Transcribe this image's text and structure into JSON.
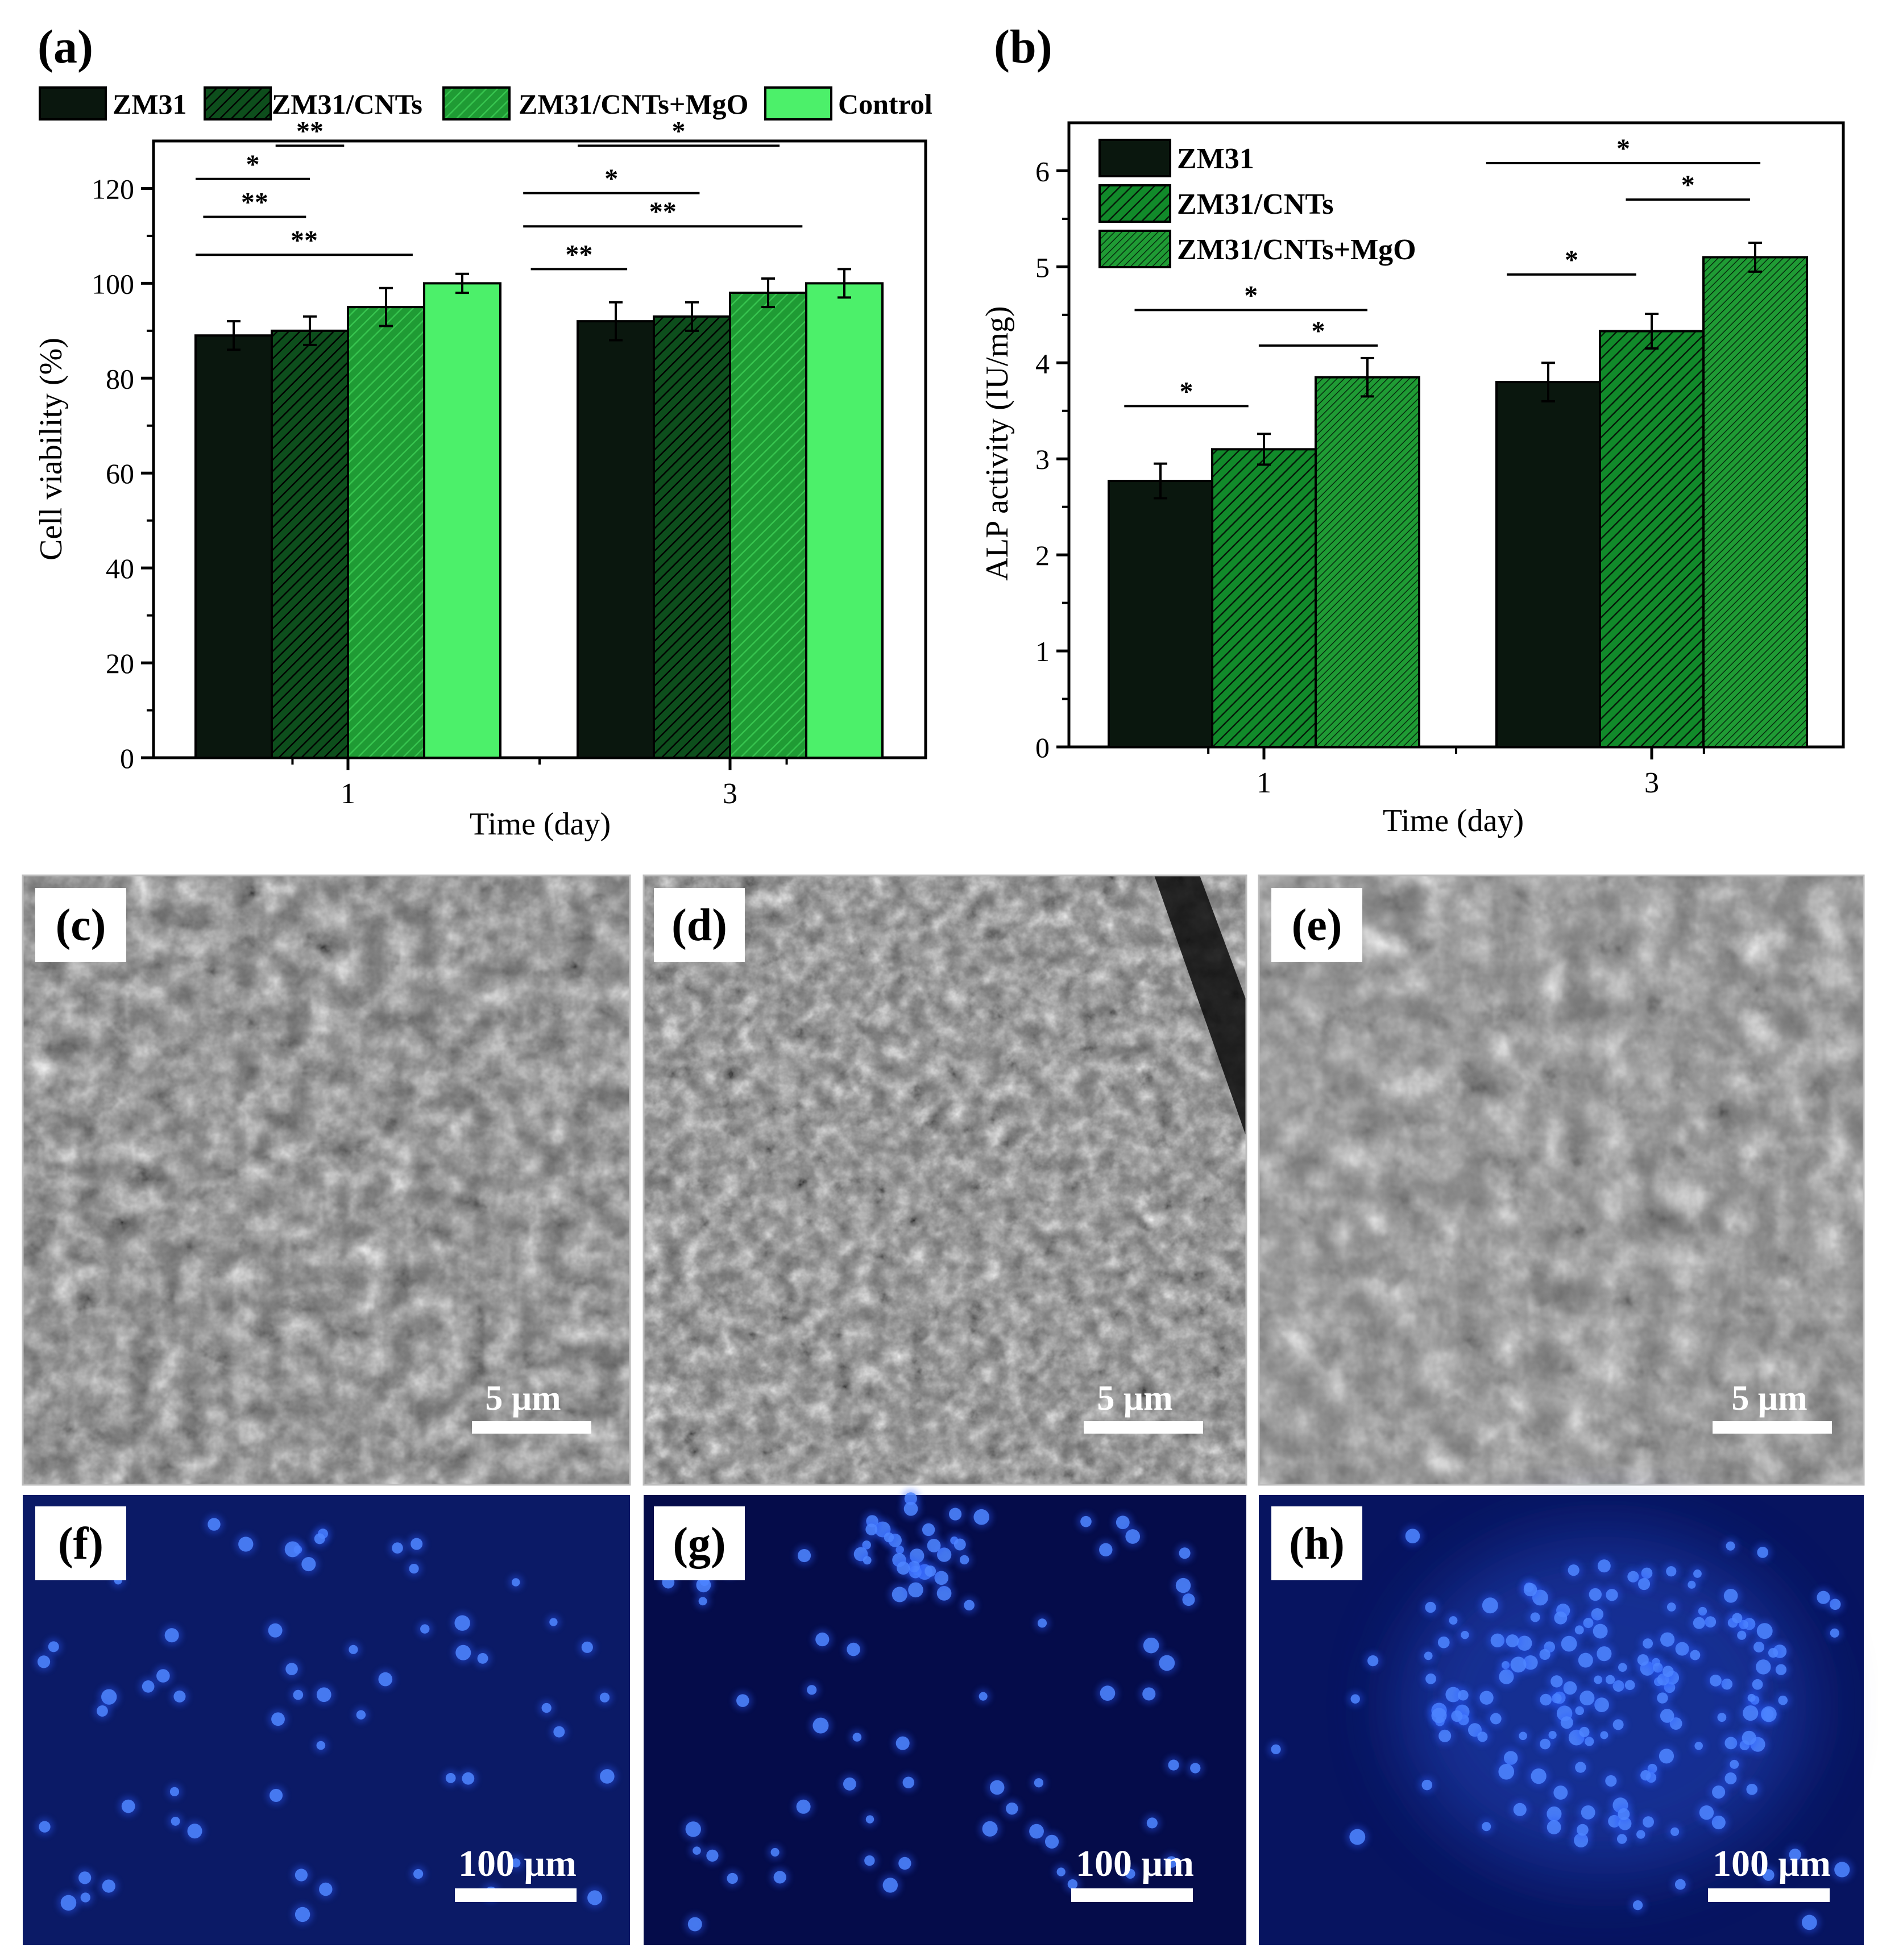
{
  "charts": {
    "colors": {
      "zm31": "#0a170e",
      "zm31_cnts": "#0d4e1c",
      "zm31_cnts_mgo": "#1f9b34",
      "control": "#4cf06a",
      "hatch_light": "#37c44f",
      "hatch_dark": "#000000"
    }
  },
  "panels": {
    "a": "(a)",
    "b": "(b)",
    "c": "(c)",
    "d": "(d)",
    "e": "(e)",
    "f": "(f)",
    "g": "(g)",
    "h": "(h)"
  },
  "scalebars": {
    "sem": "5 μm",
    "fluor": "100 μm"
  },
  "chart_data": [
    {
      "panel": "a",
      "type": "bar",
      "categories": [
        "1",
        "3"
      ],
      "xlabel": "Time (day)",
      "ylabel": "Cell viability (%)",
      "ylim": [
        0,
        130
      ],
      "yticks": [
        "0",
        "20",
        "40",
        "60",
        "80",
        "100",
        "120"
      ],
      "legend_position": "top",
      "grid": false,
      "series": [
        {
          "name": "ZM31",
          "values": [
            89,
            92
          ],
          "errors": [
            3,
            4
          ]
        },
        {
          "name": "ZM31/CNTs",
          "values": [
            90,
            93
          ],
          "errors": [
            3,
            3
          ]
        },
        {
          "name": "ZM31/CNTs+MgO",
          "values": [
            95,
            98
          ],
          "errors": [
            4,
            3
          ]
        },
        {
          "name": "Control",
          "values": [
            100,
            100
          ],
          "errors": [
            2,
            3
          ]
        }
      ],
      "significance": [
        {
          "x": [
            0,
            1.5
          ],
          "y": 122,
          "label": "*"
        },
        {
          "x": [
            1.05,
            1.95
          ],
          "y": 129,
          "label": "**"
        },
        {
          "x": [
            0.1,
            1.45
          ],
          "y": 114,
          "label": "**"
        },
        {
          "x": [
            0,
            2.85
          ],
          "y": 106,
          "label": "**"
        },
        {
          "x": [
            5.0,
            7.65
          ],
          "y": 129,
          "label": "*"
        },
        {
          "x": [
            4.3,
            6.6
          ],
          "y": 119,
          "label": "*"
        },
        {
          "x": [
            4.3,
            7.95
          ],
          "y": 112,
          "label": "**"
        },
        {
          "x": [
            4.4,
            5.65
          ],
          "y": 103,
          "label": "**"
        }
      ]
    },
    {
      "panel": "b",
      "type": "bar",
      "categories": [
        "1",
        "3"
      ],
      "xlabel": "Time (day)",
      "ylabel": "ALP activity (IU/mg)",
      "ylim": [
        0,
        6.5
      ],
      "yticks": [
        "0",
        "1",
        "2",
        "3",
        "4",
        "5",
        "6"
      ],
      "legend_position": "top-left",
      "grid": false,
      "series": [
        {
          "name": "ZM31",
          "values": [
            2.77,
            3.8
          ],
          "errors": [
            0.18,
            0.2
          ]
        },
        {
          "name": "ZM31/CNTs",
          "values": [
            3.1,
            4.33
          ],
          "errors": [
            0.16,
            0.18
          ]
        },
        {
          "name": "ZM31/CNTs+MgO",
          "values": [
            3.85,
            5.1
          ],
          "errors": [
            0.2,
            0.15
          ]
        }
      ],
      "significance": [
        {
          "x": [
            0.15,
            1.35
          ],
          "y": 3.55,
          "label": "*"
        },
        {
          "x": [
            0.25,
            2.5
          ],
          "y": 4.55,
          "label": "*"
        },
        {
          "x": [
            1.45,
            2.6
          ],
          "y": 4.18,
          "label": "*"
        },
        {
          "x": [
            4.1,
            5.35
          ],
          "y": 4.92,
          "label": "*"
        },
        {
          "x": [
            5.25,
            6.45
          ],
          "y": 5.7,
          "label": "*"
        },
        {
          "x": [
            3.9,
            6.55
          ],
          "y": 6.08,
          "label": "*"
        }
      ]
    }
  ]
}
